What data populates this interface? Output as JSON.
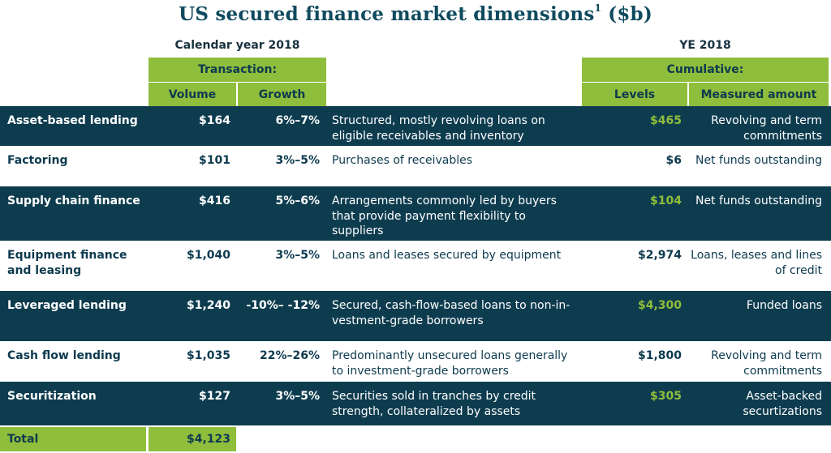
{
  "title": "US secured finance market dimensions",
  "title_sup": "1",
  "title_unit": " ($b)",
  "headers": {
    "calendar_year": "Calendar year 2018",
    "ye": "YE 2018",
    "transaction": "Transaction:",
    "cumulative": "Cumulative:",
    "volume": "Volume",
    "growth": "Growth",
    "levels": "Levels",
    "measured_amount": "Measured amount"
  },
  "rows": [
    {
      "name": "Asset-based lending",
      "volume": "$164",
      "growth": "6%–7%",
      "desc": "Structured, mostly revolving loans on eligible receivables and inventory",
      "level": "$465",
      "level_highlight": true,
      "measured": "Revolving and term commitments"
    },
    {
      "name": "Factoring",
      "volume": "$101",
      "growth": "3%–5%",
      "desc": "Purchases of receivables",
      "level": "$6",
      "level_highlight": false,
      "measured": "Net funds outstanding"
    },
    {
      "name": "Supply chain finance",
      "volume": "$416",
      "growth": "5%–6%",
      "desc": "Arrangements commonly led by buyers that provide payment flexibility to suppliers",
      "level": "$104",
      "level_highlight": true,
      "measured": "Net funds outstanding"
    },
    {
      "name": "Equipment finance and leasing",
      "volume": "$1,040",
      "growth": "3%–5%",
      "desc": "Loans and leases secured by equipment",
      "level": "$2,974",
      "level_highlight": false,
      "measured": "Loans, leases and lines of credit"
    },
    {
      "name": "Leveraged lending",
      "volume": "$1,240",
      "growth": "-10%– -12%",
      "desc": "Secured, cash-flow-based loans to non-in-vestment-grade borrowers",
      "level": "$4,300",
      "level_highlight": true,
      "measured": "Funded loans"
    },
    {
      "name": "Cash flow lending",
      "volume": "$1,035",
      "growth": "22%–26%",
      "desc": "Predominantly unsecured loans generally to investment-grade borrowers",
      "level": "$1,800",
      "level_highlight": false,
      "measured": "Revolving and term commitments"
    },
    {
      "name": "Securitization",
      "volume": "$127",
      "growth": "3%–5%",
      "desc": "Securities sold in tranches by credit strength, collateralized by assets",
      "level": "$305",
      "level_highlight": true,
      "measured": "Asset-backed securtizations"
    }
  ],
  "total": {
    "label": "Total",
    "value": "$4,123"
  },
  "colors": {
    "dark": "#0e3c4f",
    "green": "#8fbd3c"
  }
}
